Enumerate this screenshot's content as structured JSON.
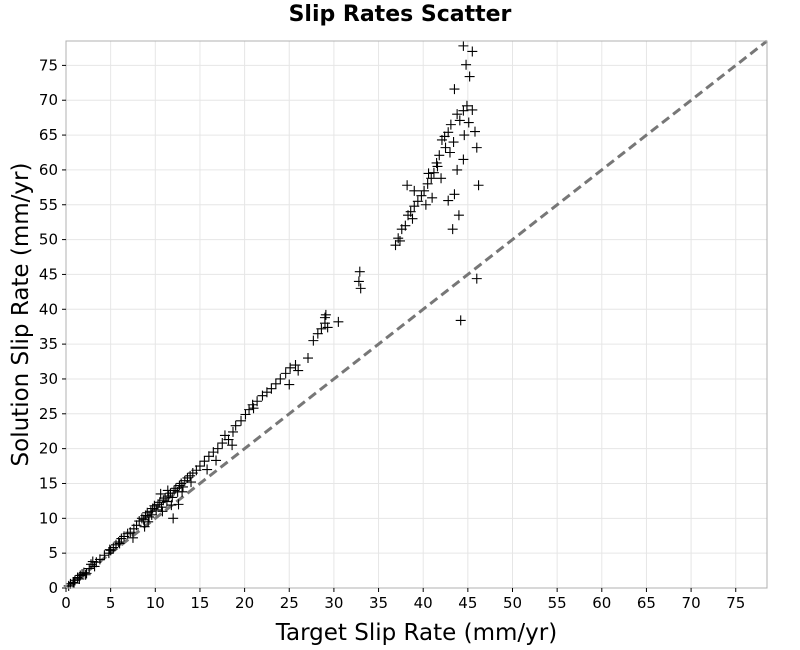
{
  "chart_data": {
    "type": "scatter",
    "title": "Slip Rates Scatter",
    "xlabel": "Target Slip Rate (mm/yr)",
    "ylabel": "Solution Slip Rate (mm/yr)",
    "xlim": [
      0,
      78.5
    ],
    "ylim": [
      0,
      78.5
    ],
    "xticks": [
      "0",
      "5",
      "10",
      "15",
      "20",
      "25",
      "30",
      "35",
      "40",
      "45",
      "50",
      "55",
      "60",
      "65",
      "70",
      "75"
    ],
    "yticks": [
      "0",
      "5",
      "10",
      "15",
      "20",
      "25",
      "30",
      "35",
      "40",
      "45",
      "50",
      "55",
      "60",
      "65",
      "70",
      "75"
    ],
    "grid": true,
    "legend": "none",
    "marker": "+",
    "marker_color": "#000000",
    "reference_line": {
      "style": "dashed",
      "color": "#777777",
      "from": [
        0,
        0
      ],
      "to": [
        78.5,
        78.5
      ]
    },
    "series": [
      {
        "points": [
          [
            0.3,
            0.3
          ],
          [
            0.5,
            0.6
          ],
          [
            0.8,
            0.8
          ],
          [
            1.0,
            1.1
          ],
          [
            1.3,
            1.5
          ],
          [
            1.5,
            1.3
          ],
          [
            1.8,
            2.0
          ],
          [
            2.0,
            2.2
          ],
          [
            2.3,
            2.1
          ],
          [
            2.6,
            2.8
          ],
          [
            2.8,
            3.4
          ],
          [
            3.0,
            3.8
          ],
          [
            3.4,
            3.7
          ],
          [
            3.8,
            4.1
          ],
          [
            4.3,
            4.7
          ],
          [
            4.8,
            5.0
          ],
          [
            5.0,
            5.4
          ],
          [
            5.3,
            5.8
          ],
          [
            5.6,
            6.2
          ],
          [
            5.9,
            6.6
          ],
          [
            6.2,
            7.1
          ],
          [
            6.5,
            7.4
          ],
          [
            6.9,
            7.8
          ],
          [
            7.2,
            8.0
          ],
          [
            7.6,
            8.5
          ],
          [
            7.9,
            9.0
          ],
          [
            8.2,
            9.6
          ],
          [
            8.5,
            10.0
          ],
          [
            8.7,
            9.8
          ],
          [
            8.9,
            10.4
          ],
          [
            9.1,
            10.8
          ],
          [
            9.3,
            10.2
          ],
          [
            9.5,
            11.0
          ],
          [
            9.7,
            11.4
          ],
          [
            9.9,
            11.8
          ],
          [
            10.1,
            11.2
          ],
          [
            10.3,
            12.0
          ],
          [
            10.5,
            12.3
          ],
          [
            10.7,
            11.6
          ],
          [
            10.9,
            12.6
          ],
          [
            11.1,
            12.9
          ],
          [
            11.3,
            12.4
          ],
          [
            11.5,
            13.2
          ],
          [
            11.7,
            13.6
          ],
          [
            11.9,
            13.0
          ],
          [
            12.1,
            14.0
          ],
          [
            12.3,
            14.3
          ],
          [
            12.5,
            13.8
          ],
          [
            12.7,
            14.7
          ],
          [
            12.9,
            15.0
          ],
          [
            13.1,
            14.5
          ],
          [
            13.3,
            15.4
          ],
          [
            13.6,
            15.8
          ],
          [
            13.9,
            16.1
          ],
          [
            14.2,
            16.5
          ],
          [
            14.6,
            16.9
          ],
          [
            15.0,
            17.5
          ],
          [
            15.5,
            18.2
          ],
          [
            16.0,
            18.9
          ],
          [
            16.5,
            19.5
          ],
          [
            17.0,
            20.0
          ],
          [
            17.5,
            20.8
          ],
          [
            17.8,
            21.9
          ],
          [
            18.2,
            21.3
          ],
          [
            18.7,
            22.4
          ],
          [
            19.0,
            23.3
          ],
          [
            19.6,
            24.0
          ],
          [
            20.1,
            24.9
          ],
          [
            20.5,
            25.6
          ],
          [
            20.9,
            26.3
          ],
          [
            21.4,
            26.8
          ],
          [
            22.0,
            27.6
          ],
          [
            22.5,
            28.1
          ],
          [
            23.0,
            28.6
          ],
          [
            23.5,
            29.3
          ],
          [
            24.0,
            30.0
          ],
          [
            24.6,
            30.8
          ],
          [
            25.1,
            31.6
          ],
          [
            25.7,
            32.0
          ],
          [
            26.0,
            31.2
          ],
          [
            27.1,
            33.0
          ],
          [
            27.7,
            35.5
          ],
          [
            28.2,
            36.5
          ],
          [
            28.6,
            37.2
          ],
          [
            29.0,
            38.0
          ],
          [
            29.1,
            39.2
          ],
          [
            29.3,
            37.4
          ],
          [
            30.5,
            38.2
          ],
          [
            32.8,
            44.0
          ],
          [
            32.9,
            45.4
          ],
          [
            33.0,
            43.0
          ],
          [
            36.9,
            49.2
          ],
          [
            37.2,
            50.2
          ],
          [
            37.6,
            51.5
          ],
          [
            38.0,
            52.0
          ],
          [
            38.3,
            53.5
          ],
          [
            38.6,
            54.0
          ],
          [
            39.0,
            54.8
          ],
          [
            39.4,
            55.5
          ],
          [
            39.8,
            56.3
          ],
          [
            40.1,
            57.0
          ],
          [
            40.5,
            58.0
          ],
          [
            40.9,
            58.8
          ],
          [
            41.2,
            59.6
          ],
          [
            41.5,
            61.0
          ],
          [
            41.8,
            62.1
          ],
          [
            42.1,
            64.3
          ],
          [
            42.5,
            63.2
          ],
          [
            42.8,
            65.4
          ],
          [
            43.1,
            66.5
          ],
          [
            43.4,
            64.0
          ],
          [
            43.0,
            62.5
          ],
          [
            43.8,
            68.0
          ],
          [
            44.1,
            67.1
          ],
          [
            44.5,
            68.5
          ],
          [
            44.9,
            69.2
          ],
          [
            45.1,
            66.8
          ],
          [
            45.5,
            68.6
          ],
          [
            46.0,
            63.2
          ],
          [
            46.2,
            57.8
          ],
          [
            43.3,
            51.5
          ],
          [
            44.0,
            53.5
          ],
          [
            44.2,
            38.4
          ],
          [
            46.0,
            44.4
          ],
          [
            43.5,
            71.6
          ],
          [
            44.8,
            75.1
          ],
          [
            45.2,
            73.4
          ],
          [
            44.5,
            77.8
          ],
          [
            45.5,
            77.0
          ],
          [
            38.2,
            57.8
          ],
          [
            39.0,
            57.0
          ],
          [
            40.3,
            55.0
          ],
          [
            42.8,
            55.6
          ],
          [
            43.8,
            60.0
          ],
          [
            44.5,
            61.5
          ],
          [
            45.8,
            65.5
          ],
          [
            42.0,
            58.8
          ],
          [
            43.5,
            56.5
          ],
          [
            41.0,
            56.0
          ],
          [
            12.0,
            10.0
          ],
          [
            8.8,
            8.8
          ],
          [
            10.6,
            13.5
          ],
          [
            11.4,
            14.0
          ],
          [
            9.6,
            10.5
          ],
          [
            6.0,
            6.4
          ],
          [
            7.5,
            7.2
          ],
          [
            4.9,
            5.5
          ],
          [
            3.2,
            3.1
          ],
          [
            2.2,
            1.9
          ],
          [
            1.6,
            1.8
          ],
          [
            0.9,
            0.7
          ],
          [
            14.0,
            15.2
          ],
          [
            13.0,
            13.8
          ],
          [
            12.6,
            12.0
          ],
          [
            11.8,
            11.9
          ],
          [
            10.8,
            11.0
          ],
          [
            9.2,
            9.5
          ],
          [
            15.8,
            17.0
          ],
          [
            16.8,
            18.3
          ],
          [
            18.6,
            20.5
          ],
          [
            21.0,
            25.8
          ],
          [
            25.0,
            29.2
          ],
          [
            29.0,
            38.8
          ],
          [
            37.4,
            49.8
          ],
          [
            38.8,
            53.0
          ],
          [
            40.6,
            59.5
          ],
          [
            41.6,
            60.5
          ],
          [
            42.4,
            64.8
          ],
          [
            44.6,
            65.0
          ]
        ]
      }
    ]
  }
}
